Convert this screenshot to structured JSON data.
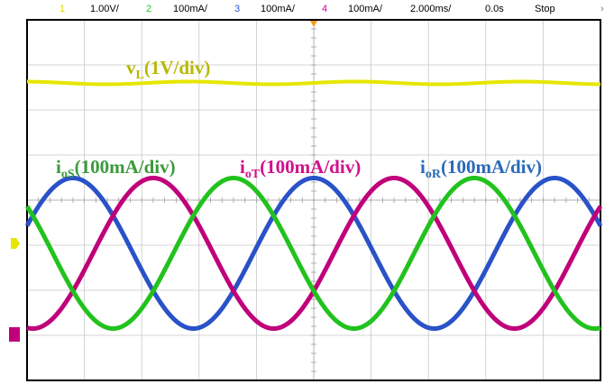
{
  "status_bar": {
    "ch1_num": "1",
    "ch1_scale": "1.00V/",
    "ch2_num": "2",
    "ch2_scale": "100mA/",
    "ch3_num": "3",
    "ch3_scale": "100mA/",
    "ch4_num": "4",
    "ch4_scale": "100mA/",
    "timebase": "2.000ms/",
    "delay": "0.0s",
    "run_state": "Stop"
  },
  "labels": {
    "vL": {
      "base": "v",
      "sub": "L",
      "rest": "(1V/div)"
    },
    "ioS": {
      "base": "i",
      "sub": "oS",
      "rest": "(100mA/div)"
    },
    "ioT": {
      "base": "i",
      "sub": "oT",
      "rest": "(100mA/div)"
    },
    "ioR": {
      "base": "i",
      "sub": "oR",
      "rest": "(100mA/div)"
    }
  },
  "colors": {
    "vL": "#e6e600",
    "ioS": "#22c21e",
    "ioT": "#c0007a",
    "ioR": "#2a52c8",
    "label_vL": "#b8b800",
    "label_ioS": "#3a9a3a",
    "label_ioT": "#d0108c",
    "label_ioR": "#2a6ab8",
    "grid": "#c8c8c8",
    "frame": "#000000"
  },
  "chart_data": {
    "type": "line",
    "x_unit": "ms",
    "x_range": [
      -10,
      10
    ],
    "grid_divisions": [
      10,
      8
    ],
    "grid": true,
    "time_per_div_ms": 2,
    "series": [
      {
        "key": "vL",
        "scale": "1V/div",
        "amplitude_div": 0.03,
        "offset_div": 2.6,
        "period_ms": 5.8,
        "phase_deg": 0
      },
      {
        "key": "ioR",
        "scale": "100mA/div",
        "amplitude_div": 1.67,
        "offset_div": -1.18,
        "period_ms": 8.4,
        "phase_deg": 90
      },
      {
        "key": "ioT",
        "scale": "100mA/div",
        "amplitude_div": 1.67,
        "offset_div": -1.18,
        "period_ms": 8.4,
        "phase_deg": -30
      },
      {
        "key": "ioS",
        "scale": "100mA/div",
        "amplitude_div": 1.67,
        "offset_div": -1.18,
        "period_ms": 8.4,
        "phase_deg": 210
      }
    ]
  }
}
